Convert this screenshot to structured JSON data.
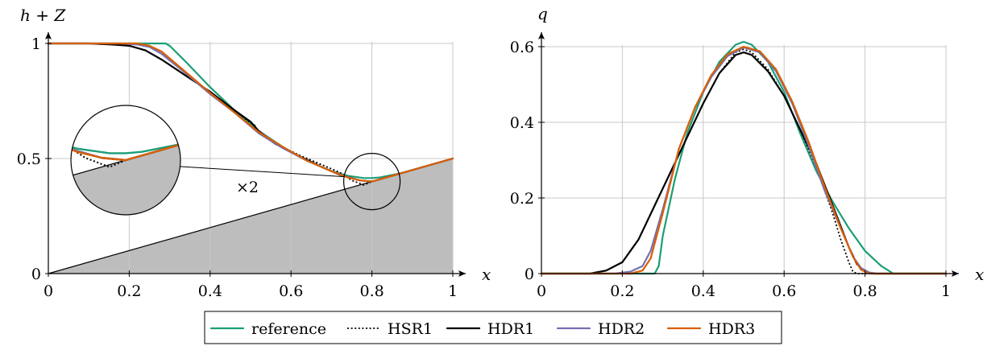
{
  "colors": {
    "reference": "#1b9e77",
    "HSR1": "#000000",
    "HDR1": "#000000",
    "HDR2": "#7570b3",
    "HDR3": "#d95f02",
    "bottom_fill": "#bdbdbd",
    "grid": "#c8c8c8"
  },
  "legend": {
    "placement": "bottom-center"
  },
  "chart_data": [
    {
      "type": "line",
      "ylabel": "h + Z",
      "xlabel": "x",
      "xlim": [
        0,
        1
      ],
      "ylim": [
        0,
        1
      ],
      "xticks": [
        "0",
        "0.2",
        "0.4",
        "0.6",
        "0.8",
        "1"
      ],
      "yticks": [
        "0",
        "0.5",
        "1"
      ],
      "xtick_values": [
        0,
        0.2,
        0.4,
        0.6,
        0.8,
        1
      ],
      "ytick_values": [
        0,
        0.5,
        1
      ],
      "grid": true,
      "bottom": {
        "x": [
          0,
          1
        ],
        "y": [
          0,
          0.5
        ]
      },
      "zoom_label": "×2",
      "series": [
        {
          "name": "reference",
          "style": "solid",
          "x": [
            0,
            0.28,
            0.29,
            0.3,
            0.34,
            0.4,
            0.46,
            0.52,
            0.58,
            0.64,
            0.7,
            0.74,
            0.78,
            0.8,
            0.82,
            0.84,
            0.86,
            0.88,
            1.0
          ],
          "y": [
            1,
            1,
            1,
            0.99,
            0.92,
            0.81,
            0.71,
            0.62,
            0.55,
            0.49,
            0.445,
            0.425,
            0.415,
            0.415,
            0.418,
            0.425,
            0.432,
            0.44,
            0.5
          ]
        },
        {
          "name": "HSR1",
          "style": "dotted",
          "x": [
            0,
            0.1,
            0.16,
            0.2,
            0.24,
            0.28,
            0.34,
            0.4,
            0.46,
            0.5,
            0.51,
            0.52,
            0.56,
            0.62,
            0.68,
            0.72,
            0.75,
            0.78,
            0.8,
            0.86,
            1.0
          ],
          "y": [
            1,
            1,
            0.995,
            0.99,
            0.97,
            0.93,
            0.86,
            0.79,
            0.71,
            0.655,
            0.645,
            0.61,
            0.565,
            0.515,
            0.47,
            0.44,
            0.405,
            0.385,
            0.4,
            0.43,
            0.5
          ]
        },
        {
          "name": "HDR1",
          "style": "solid",
          "x": [
            0,
            0.1,
            0.16,
            0.2,
            0.24,
            0.28,
            0.34,
            0.4,
            0.46,
            0.5,
            0.51,
            0.52,
            0.56,
            0.62,
            0.68,
            0.72,
            0.75,
            0.77,
            0.8,
            0.86,
            1.0
          ],
          "y": [
            1,
            1,
            0.995,
            0.99,
            0.97,
            0.93,
            0.86,
            0.79,
            0.71,
            0.66,
            0.64,
            0.62,
            0.565,
            0.51,
            0.46,
            0.43,
            0.415,
            0.405,
            0.4,
            0.43,
            0.5
          ]
        },
        {
          "name": "HDR2",
          "style": "solid",
          "x": [
            0,
            0.18,
            0.22,
            0.25,
            0.28,
            0.34,
            0.4,
            0.46,
            0.52,
            0.58,
            0.64,
            0.7,
            0.74,
            0.77,
            0.8,
            0.86,
            1.0
          ],
          "y": [
            1,
            1,
            0.995,
            0.985,
            0.955,
            0.87,
            0.78,
            0.7,
            0.61,
            0.545,
            0.49,
            0.445,
            0.42,
            0.405,
            0.4,
            0.43,
            0.5
          ]
        },
        {
          "name": "HDR3",
          "style": "solid",
          "x": [
            0,
            0.22,
            0.25,
            0.28,
            0.34,
            0.4,
            0.46,
            0.52,
            0.58,
            0.64,
            0.7,
            0.74,
            0.77,
            0.8,
            0.86,
            1.0
          ],
          "y": [
            1,
            1,
            0.99,
            0.965,
            0.875,
            0.785,
            0.7,
            0.615,
            0.55,
            0.49,
            0.445,
            0.418,
            0.405,
            0.4,
            0.43,
            0.5
          ]
        }
      ]
    },
    {
      "type": "line",
      "ylabel": "q",
      "xlabel": "x",
      "xlim": [
        0,
        1
      ],
      "ylim": [
        0,
        0.6
      ],
      "xticks": [
        "0",
        "0.2",
        "0.4",
        "0.6",
        "0.8",
        "1"
      ],
      "yticks": [
        "0",
        "0.2",
        "0.4",
        "0.6"
      ],
      "xtick_values": [
        0,
        0.2,
        0.4,
        0.6,
        0.8,
        1
      ],
      "ytick_values": [
        0,
        0.2,
        0.4,
        0.6
      ],
      "grid": true,
      "series": [
        {
          "name": "reference",
          "style": "solid",
          "x": [
            0,
            0.28,
            0.29,
            0.3,
            0.33,
            0.36,
            0.4,
            0.44,
            0.48,
            0.5,
            0.52,
            0.56,
            0.6,
            0.64,
            0.68,
            0.72,
            0.76,
            0.8,
            0.84,
            0.87,
            0.88,
            1.0
          ],
          "y": [
            0,
            0,
            0.02,
            0.1,
            0.25,
            0.37,
            0.48,
            0.56,
            0.605,
            0.613,
            0.605,
            0.56,
            0.48,
            0.37,
            0.27,
            0.19,
            0.12,
            0.06,
            0.02,
            0,
            0,
            0
          ]
        },
        {
          "name": "HSR1",
          "style": "dotted",
          "x": [
            0,
            0.12,
            0.16,
            0.2,
            0.24,
            0.28,
            0.32,
            0.36,
            0.4,
            0.44,
            0.48,
            0.5,
            0.52,
            0.56,
            0.6,
            0.64,
            0.68,
            0.72,
            0.74,
            0.76,
            0.77,
            0.78,
            1.0
          ],
          "y": [
            0,
            0,
            0.008,
            0.03,
            0.09,
            0.18,
            0.27,
            0.36,
            0.45,
            0.53,
            0.585,
            0.593,
            0.585,
            0.54,
            0.47,
            0.38,
            0.28,
            0.16,
            0.09,
            0.03,
            0.005,
            0,
            0
          ]
        },
        {
          "name": "HDR1",
          "style": "solid",
          "x": [
            0,
            0.12,
            0.16,
            0.2,
            0.24,
            0.28,
            0.32,
            0.36,
            0.4,
            0.44,
            0.48,
            0.5,
            0.52,
            0.56,
            0.6,
            0.64,
            0.68,
            0.72,
            0.76,
            0.78,
            0.8,
            0.82,
            1.0
          ],
          "y": [
            0,
            0,
            0.008,
            0.03,
            0.09,
            0.18,
            0.27,
            0.36,
            0.45,
            0.53,
            0.578,
            0.585,
            0.578,
            0.535,
            0.47,
            0.38,
            0.29,
            0.18,
            0.07,
            0.025,
            0.005,
            0,
            0
          ]
        },
        {
          "name": "HDR2",
          "style": "solid",
          "x": [
            0,
            0.18,
            0.22,
            0.25,
            0.27,
            0.3,
            0.34,
            0.38,
            0.42,
            0.46,
            0.5,
            0.54,
            0.58,
            0.62,
            0.66,
            0.7,
            0.74,
            0.77,
            0.79,
            0.81,
            0.83,
            1.0
          ],
          "y": [
            0,
            0,
            0.005,
            0.02,
            0.06,
            0.17,
            0.33,
            0.44,
            0.52,
            0.575,
            0.598,
            0.585,
            0.535,
            0.45,
            0.34,
            0.22,
            0.12,
            0.045,
            0.015,
            0.003,
            0,
            0
          ]
        },
        {
          "name": "HDR3",
          "style": "solid",
          "x": [
            0,
            0.22,
            0.25,
            0.27,
            0.3,
            0.34,
            0.38,
            0.42,
            0.46,
            0.5,
            0.54,
            0.58,
            0.62,
            0.66,
            0.7,
            0.74,
            0.77,
            0.79,
            0.81,
            1.0
          ],
          "y": [
            0,
            0,
            0.008,
            0.04,
            0.16,
            0.33,
            0.44,
            0.525,
            0.58,
            0.6,
            0.588,
            0.54,
            0.455,
            0.35,
            0.23,
            0.12,
            0.045,
            0.01,
            0,
            0
          ]
        }
      ]
    }
  ]
}
